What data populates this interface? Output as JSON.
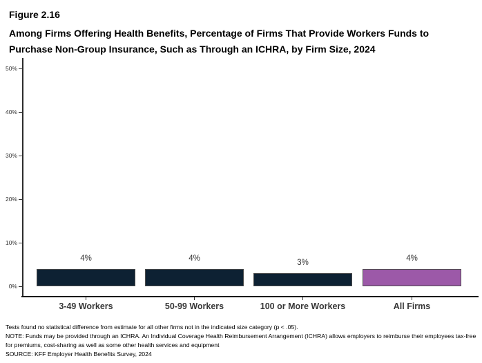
{
  "figure": {
    "number": "Figure 2.16",
    "title_line1": "Among Firms Offering Health Benefits, Percentage of Firms That Provide Workers Funds to",
    "title_line2": "Purchase Non-Group Insurance, Such as Through an ICHRA, by Firm Size, 2024"
  },
  "chart_data": {
    "type": "bar",
    "title": "Among Firms Offering Health Benefits, Percentage of Firms That Provide Workers Funds to Purchase Non-Group Insurance, Such as Through an ICHRA, by Firm Size, 2024",
    "categories": [
      "3-49 Workers",
      "50-99 Workers",
      "100 or More Workers",
      "All Firms"
    ],
    "values": [
      4,
      4,
      3,
      4
    ],
    "value_labels": [
      "4%",
      "4%",
      "3%",
      "4%"
    ],
    "ylim": [
      0,
      50
    ],
    "y_tick_values": [
      0,
      10,
      20,
      30,
      40,
      50
    ],
    "y_tick_labels": [
      "0%",
      "10%",
      "20%",
      "30%",
      "40%",
      "50%"
    ],
    "grid": false,
    "legend": "none",
    "xlabel": "",
    "ylabel": "",
    "bar_colors": [
      "#0d2133",
      "#0d2133",
      "#0d2133",
      "#9c59a8"
    ],
    "bar_border_color": "#4d4d4d"
  },
  "footnotes": {
    "line1": "Tests found no statistical difference from estimate for all other firms not in the indicated size category (p < .05).",
    "line2": "NOTE: Funds may be provided through an ICHRA. An Individual Coverage Health Reimbursement Arrangement (ICHRA) allows employers to reimburse their employees tax-free for premiums, cost-sharing as well as some other health services and equipment",
    "line3": "SOURCE: KFF Employer Health Benefits Survey, 2024"
  }
}
